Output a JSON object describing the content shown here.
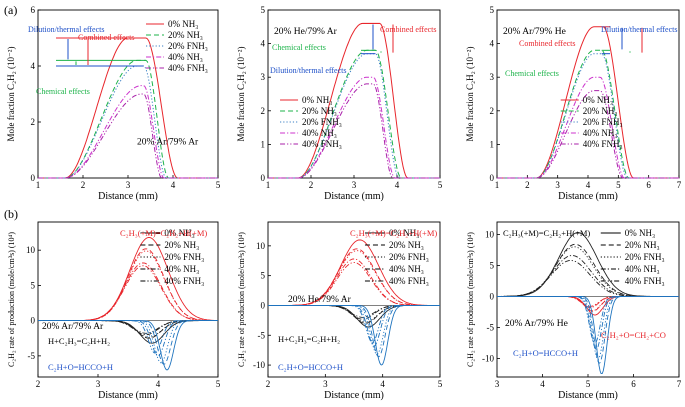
{
  "figure": {
    "panel_a_label": "(a)",
    "panel_b_label": "(b)"
  },
  "legend_a": [
    {
      "label": "0% NH₃",
      "color": "#e8262c",
      "dash": "solid"
    },
    {
      "label": "20% NH₃",
      "color": "#1db34a",
      "dash": "dash"
    },
    {
      "label": "20% FNH₃",
      "color": "#3a7fc4",
      "dash": "dot"
    },
    {
      "label": "40% NH₃",
      "color": "#cc33cc",
      "dash": "dashdot"
    },
    {
      "label": "40% FNH₃",
      "color": "#aa22aa",
      "dash": "dashdotdot"
    }
  ],
  "legend_b": [
    {
      "label": "0% NH₃",
      "dash": "solid"
    },
    {
      "label": "20% NH₃",
      "dash": "dash"
    },
    {
      "label": "20% FNH₃",
      "dash": "dot"
    },
    {
      "label": "40% NH₃",
      "dash": "dashdot"
    },
    {
      "label": "40% FNH₃",
      "dash": "dashdotdot"
    }
  ],
  "annotations": {
    "dilution": "Dilution/thermal effects",
    "combined": "Combined effects",
    "chemical": "Chemical effects"
  },
  "chart_data": [
    {
      "type": "line",
      "panel": "a1",
      "xlabel": "Distance (mm)",
      "ylabel": "Mole fraction C₂H₂ (10⁻²)",
      "xlim": [
        1,
        5
      ],
      "ylim": [
        0,
        6
      ],
      "xticks": [
        1,
        2,
        3,
        4,
        5
      ],
      "yticks": [
        0,
        2,
        4,
        6
      ],
      "condition": "20% Ar/79% Ar",
      "series": [
        {
          "name": "0% NH₃",
          "peak": 5.0,
          "rise": [
            1.6,
            3.0
          ],
          "plateau_end": 3.4,
          "fall_end": 4.1
        },
        {
          "name": "20% NH₃",
          "peak": 4.2,
          "rise": [
            1.6,
            3.2
          ],
          "plateau_end": 3.4,
          "fall_end": 3.9
        },
        {
          "name": "20% FNH₃",
          "peak": 4.0,
          "rise": [
            1.6,
            3.2
          ],
          "plateau_end": 3.35,
          "fall_end": 3.85
        },
        {
          "name": "40% NH₃",
          "peak": 3.3,
          "rise": [
            1.6,
            3.3
          ],
          "plateau_end": 3.35,
          "fall_end": 3.8
        },
        {
          "name": "40% FNH₃",
          "peak": 3.0,
          "rise": [
            1.6,
            3.3
          ],
          "plateau_end": 3.35,
          "fall_end": 3.75
        }
      ]
    },
    {
      "type": "line",
      "panel": "a2",
      "xlabel": "Distance (mm)",
      "ylabel": "Mole fraction C₂H₂ (10⁻²)",
      "xlim": [
        1,
        5
      ],
      "ylim": [
        0,
        5
      ],
      "xticks": [
        1,
        2,
        3,
        4,
        5
      ],
      "yticks": [
        0,
        1,
        2,
        3,
        4,
        5
      ],
      "condition": "20% He/79% Ar",
      "series": [
        {
          "name": "0% NH₃",
          "peak": 4.6,
          "rise": [
            1.7,
            3.2
          ],
          "plateau_end": 3.6,
          "fall_end": 4.25
        },
        {
          "name": "20% NH₃",
          "peak": 3.8,
          "rise": [
            1.7,
            3.3
          ],
          "plateau_end": 3.5,
          "fall_end": 4.1
        },
        {
          "name": "20% FNH₃",
          "peak": 3.7,
          "rise": [
            1.7,
            3.3
          ],
          "plateau_end": 3.5,
          "fall_end": 4.05
        },
        {
          "name": "40% NH₃",
          "peak": 3.0,
          "rise": [
            1.7,
            3.3
          ],
          "plateau_end": 3.45,
          "fall_end": 3.95
        },
        {
          "name": "40% FNH₃",
          "peak": 2.8,
          "rise": [
            1.7,
            3.3
          ],
          "plateau_end": 3.45,
          "fall_end": 3.9
        }
      ]
    },
    {
      "type": "line",
      "panel": "a3",
      "xlabel": "Distance (mm)",
      "ylabel": "Mole fraction C₂H₂ (10⁻²)",
      "xlim": [
        1,
        7
      ],
      "ylim": [
        0,
        5
      ],
      "xticks": [
        1,
        2,
        3,
        4,
        5,
        6,
        7
      ],
      "yticks": [
        0,
        1,
        2,
        3,
        4,
        5
      ],
      "condition": "20% Ar/79% He",
      "series": [
        {
          "name": "0% NH₃",
          "peak": 4.5,
          "rise": [
            2.3,
            4.2
          ],
          "plateau_end": 4.5,
          "fall_end": 5.5
        },
        {
          "name": "20% NH₃",
          "peak": 3.8,
          "rise": [
            2.3,
            4.2
          ],
          "plateau_end": 4.45,
          "fall_end": 5.35
        },
        {
          "name": "20% FNH₃",
          "peak": 3.7,
          "rise": [
            2.3,
            4.2
          ],
          "plateau_end": 4.45,
          "fall_end": 5.3
        },
        {
          "name": "40% NH₃",
          "peak": 3.0,
          "rise": [
            2.3,
            4.2
          ],
          "plateau_end": 4.4,
          "fall_end": 5.2
        },
        {
          "name": "40% FNH₃",
          "peak": 2.6,
          "rise": [
            2.3,
            4.2
          ],
          "plateau_end": 4.4,
          "fall_end": 5.15
        }
      ]
    },
    {
      "type": "line",
      "panel": "b1",
      "xlabel": "Distance (mm)",
      "ylabel": "C₂H₂ rate of production (mole/cm³s) (10⁴)",
      "xlim": [
        2,
        5
      ],
      "ylim": [
        -8,
        14
      ],
      "xticks": [
        2,
        3,
        4,
        5
      ],
      "yticks": [
        -5,
        0,
        5,
        10
      ],
      "condition": "20% Ar/79% Ar",
      "labels": {
        "r1": "C₂H₃(+M)=C₂H₂+H(+M)",
        "r2": "H+C₂H₃=C₂H+H₂",
        "r3": "C₂H+O=HCCO+H"
      },
      "groups": [
        {
          "reaction": "r1",
          "color": "#e8262c",
          "peaks": [
            11.8,
            10.2,
            9.9,
            8.2,
            7.8
          ],
          "centers": [
            3.85,
            3.8,
            3.8,
            3.75,
            3.75
          ],
          "widths": [
            0.32,
            0.3,
            0.3,
            0.3,
            0.3
          ]
        },
        {
          "reaction": "r2",
          "color": "#222222",
          "peaks": [
            -3.2,
            -2.5,
            -2.4,
            -2.0,
            -1.8
          ],
          "centers": [
            3.9,
            3.85,
            3.85,
            3.8,
            3.8
          ],
          "widths": [
            0.2,
            0.2,
            0.2,
            0.2,
            0.2
          ]
        },
        {
          "reaction": "r3",
          "color": "#1e73be",
          "peaks": [
            -7.0,
            -6.2,
            -6.0,
            -5.0,
            -4.6
          ],
          "centers": [
            4.15,
            4.1,
            4.05,
            4.0,
            3.95
          ],
          "widths": [
            0.11,
            0.11,
            0.11,
            0.11,
            0.11
          ]
        }
      ]
    },
    {
      "type": "line",
      "panel": "b2",
      "xlabel": "Distance (mm)",
      "ylabel": "C₂H₂ rate of production (mole/cm³s) (10⁴)",
      "xlim": [
        2,
        5
      ],
      "ylim": [
        -12,
        14
      ],
      "xticks": [
        2,
        3,
        4,
        5
      ],
      "yticks": [
        -10,
        -5,
        0,
        5,
        10
      ],
      "condition": "20% He/79% Ar",
      "labels": {
        "r1": "C₂H₃(+M)=C₂H₂+H(+M)",
        "r2": "H+C₂H₃=C₂H+H₂",
        "r3": "C₂H+O=HCCO+H"
      },
      "groups": [
        {
          "reaction": "r1",
          "color": "#e8262c",
          "peaks": [
            11.0,
            9.5,
            9.2,
            7.8,
            7.2
          ],
          "centers": [
            3.6,
            3.55,
            3.55,
            3.5,
            3.5
          ],
          "widths": [
            0.33,
            0.32,
            0.32,
            0.3,
            0.3
          ]
        },
        {
          "reaction": "r2",
          "color": "#222222",
          "peaks": [
            -3.6,
            -3.0,
            -2.8,
            -2.3,
            -2.0
          ],
          "centers": [
            3.75,
            3.7,
            3.7,
            3.65,
            3.65
          ],
          "widths": [
            0.2,
            0.2,
            0.2,
            0.2,
            0.2
          ]
        },
        {
          "reaction": "r3",
          "color": "#1e73be",
          "peaks": [
            -10.0,
            -8.6,
            -8.2,
            -6.8,
            -6.2
          ],
          "centers": [
            3.98,
            3.93,
            3.9,
            3.85,
            3.82
          ],
          "widths": [
            0.11,
            0.11,
            0.11,
            0.11,
            0.11
          ]
        }
      ]
    },
    {
      "type": "line",
      "panel": "b3",
      "xlabel": "Distance (mm)",
      "ylabel": "C₂H₂ rate of production (mole/cm³s) (10⁴)",
      "xlim": [
        3,
        7
      ],
      "ylim": [
        -13,
        12
      ],
      "xticks": [
        3,
        4,
        5,
        6,
        7
      ],
      "yticks": [
        -10,
        -5,
        0,
        5,
        10
      ],
      "condition": "20% Ar/79% He",
      "labels": {
        "r1": "C₂H₃(+M)=C₂H₂+H(+M)",
        "r4": "C₂H₂+O=CH₂+CO",
        "r3": "C₂H+O=HCCO+H"
      },
      "groups": [
        {
          "reaction": "r1",
          "color": "#222222",
          "peaks": [
            10.3,
            8.4,
            8.0,
            6.6,
            5.8
          ],
          "centers": [
            4.78,
            4.72,
            4.7,
            4.65,
            4.62
          ],
          "widths": [
            0.42,
            0.42,
            0.42,
            0.42,
            0.42
          ]
        },
        {
          "reaction": "r4",
          "color": "#e8262c",
          "peaks": [
            -3.0,
            -2.4,
            -2.3,
            -1.8,
            -1.6
          ],
          "centers": [
            5.15,
            5.1,
            5.1,
            5.05,
            5.05
          ],
          "widths": [
            0.18,
            0.18,
            0.18,
            0.18,
            0.18
          ]
        },
        {
          "reaction": "r3",
          "color": "#1e73be",
          "peaks": [
            -12.5,
            -10.8,
            -10.2,
            -8.6,
            -7.6
          ],
          "centers": [
            5.3,
            5.25,
            5.22,
            5.18,
            5.15
          ],
          "widths": [
            0.12,
            0.12,
            0.12,
            0.12,
            0.12
          ]
        }
      ]
    }
  ]
}
